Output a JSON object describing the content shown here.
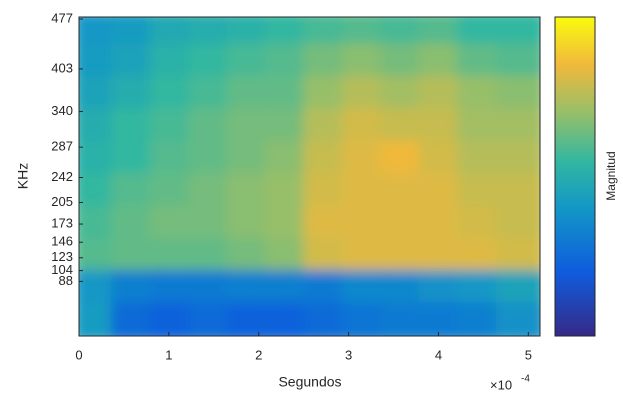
{
  "chart_data": {
    "type": "contour",
    "x_label": "Segundos",
    "x_exponent": "×10",
    "x_exponent_power": "-4",
    "y_label": "KHz",
    "colorbar_label": "Magnitud",
    "xlim": [
      0,
      5.13
    ],
    "xticks": [
      0,
      1,
      2,
      3,
      4,
      5
    ],
    "ylim": [
      7,
      480
    ],
    "yticks": [
      88,
      104,
      123,
      146,
      173,
      205,
      242,
      287,
      340,
      403,
      477
    ],
    "x": [
      0.21,
      0.64,
      1.07,
      1.5,
      1.92,
      2.35,
      2.78,
      3.21,
      3.63,
      4.06,
      4.49,
      4.92
    ],
    "y": [
      456,
      408,
      360,
      312,
      264,
      216,
      168,
      120,
      72,
      24
    ],
    "z": [
      [
        0.4,
        0.42,
        0.48,
        0.5,
        0.52,
        0.55,
        0.58,
        0.6,
        0.58,
        0.6,
        0.55,
        0.55
      ],
      [
        0.42,
        0.45,
        0.52,
        0.55,
        0.58,
        0.6,
        0.65,
        0.68,
        0.65,
        0.68,
        0.62,
        0.6
      ],
      [
        0.45,
        0.5,
        0.55,
        0.58,
        0.62,
        0.62,
        0.7,
        0.75,
        0.72,
        0.75,
        0.7,
        0.68
      ],
      [
        0.5,
        0.55,
        0.58,
        0.62,
        0.65,
        0.65,
        0.75,
        0.8,
        0.78,
        0.78,
        0.72,
        0.72
      ],
      [
        0.52,
        0.55,
        0.6,
        0.62,
        0.65,
        0.68,
        0.78,
        0.82,
        0.85,
        0.8,
        0.75,
        0.75
      ],
      [
        0.55,
        0.6,
        0.62,
        0.65,
        0.68,
        0.7,
        0.8,
        0.82,
        0.82,
        0.82,
        0.78,
        0.78
      ],
      [
        0.58,
        0.62,
        0.65,
        0.65,
        0.68,
        0.7,
        0.82,
        0.82,
        0.82,
        0.82,
        0.8,
        0.78
      ],
      [
        0.6,
        0.62,
        0.62,
        0.62,
        0.65,
        0.68,
        0.8,
        0.82,
        0.82,
        0.82,
        0.82,
        0.8
      ],
      [
        0.4,
        0.32,
        0.3,
        0.3,
        0.32,
        0.32,
        0.3,
        0.35,
        0.35,
        0.38,
        0.4,
        0.45
      ],
      [
        0.42,
        0.25,
        0.22,
        0.25,
        0.22,
        0.22,
        0.25,
        0.28,
        0.3,
        0.3,
        0.32,
        0.38
      ]
    ]
  }
}
